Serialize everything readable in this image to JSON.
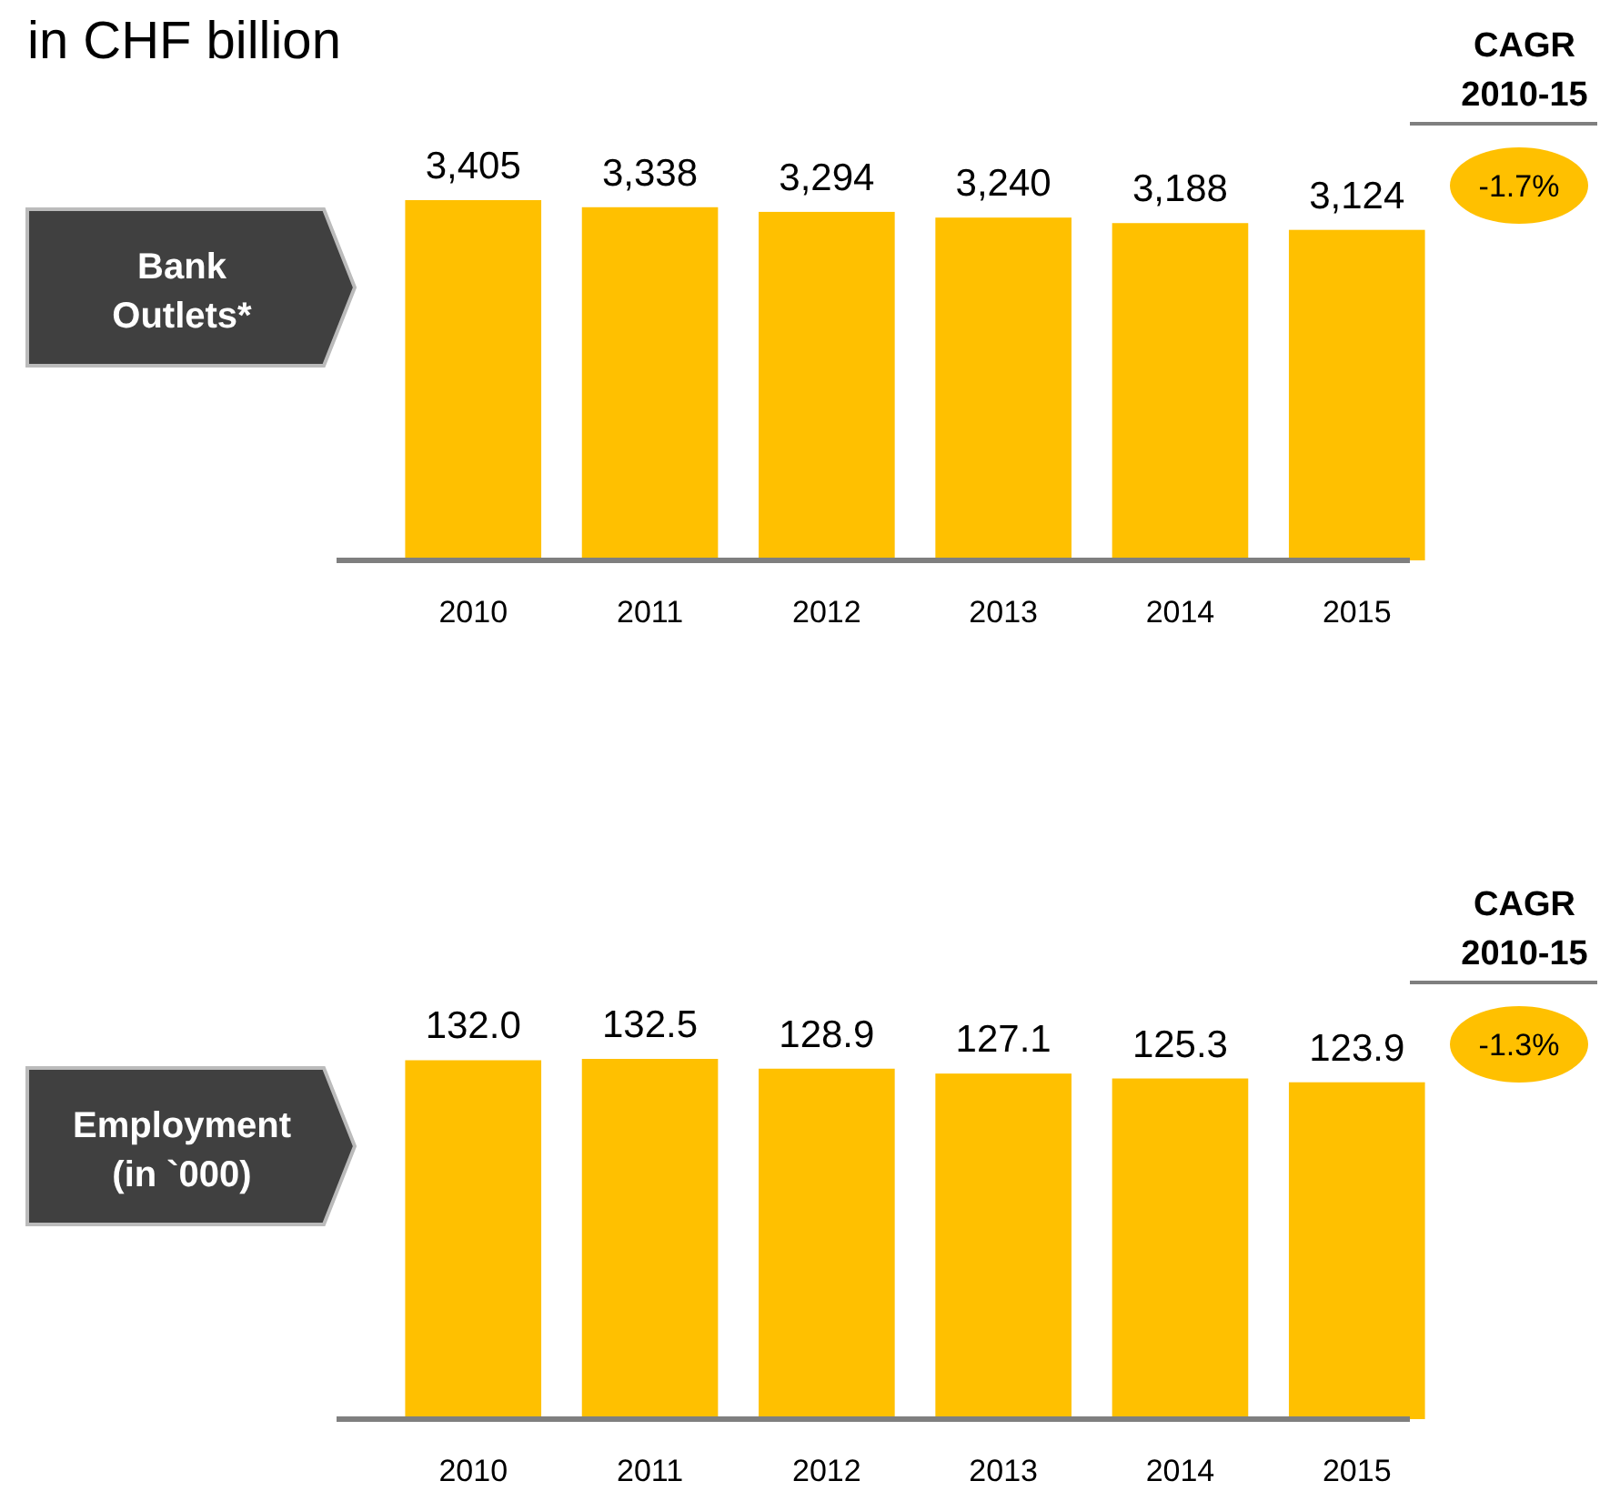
{
  "chart_data": [
    {
      "type": "bar",
      "title": "in CHF billion",
      "ylabel": "Bank Outlets*",
      "categories": [
        "2010",
        "2011",
        "2012",
        "2013",
        "2014",
        "2015"
      ],
      "values": [
        3405,
        3338,
        3294,
        3240,
        3188,
        3124
      ],
      "color": "#ffc000",
      "data_labels": true,
      "value_labels": [
        "3,405",
        "3,338",
        "3,294",
        "3,240",
        "3,188",
        "3,124"
      ],
      "annotations": [
        "CAGR 2010-15",
        "-1.7%"
      ]
    },
    {
      "type": "bar",
      "ylabel": "Employment (in `000)",
      "categories": [
        "2010",
        "2011",
        "2012",
        "2013",
        "2014",
        "2015"
      ],
      "values": [
        132.0,
        132.5,
        128.9,
        127.1,
        125.3,
        123.9
      ],
      "color": "#ffc000",
      "data_labels": true,
      "value_labels": [
        "132.0",
        "132.5",
        "128.9",
        "127.1",
        "125.3",
        "123.9"
      ],
      "annotations": [
        "CAGR 2010-15",
        "-1.3%"
      ]
    }
  ]
}
